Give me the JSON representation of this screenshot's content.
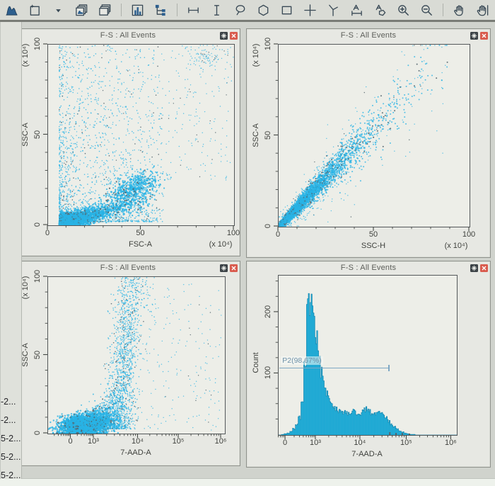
{
  "colors": {
    "dot_cyan": "#29b4e6",
    "dot_dark": "#54656e",
    "hist_fill": "#19a7d3",
    "hist_edge": "#0d7fa9",
    "gate_blue": "#7fa8c4",
    "gate_label_color": "#6d90a8",
    "close_red": "#d95b4e",
    "icon_dark": "#3a4a56"
  },
  "toolbar": {
    "buttons": [
      "histogram-icon",
      "new-plot-icon",
      "dropdown-arrow-icon",
      "duplicate-plot-icon",
      "layers-icon",
      "separator",
      "bar-chart-icon",
      "hierarchy-icon",
      "separator",
      "interval-gate-icon",
      "vertical-line-gate-icon",
      "lasso-gate-icon",
      "polygon-gate-icon",
      "rectangle-gate-icon",
      "quadrant-gate-icon",
      "angled-quadrant-gate-icon",
      "range-label-icon",
      "polygon-label-icon",
      "zoom-in-icon",
      "zoom-out-icon",
      "separator",
      "pan-hand-icon",
      "grab-hand-icon",
      "separator",
      "clipped-icon"
    ]
  },
  "sidebar": {
    "items": [
      "-2...",
      "-2...",
      "5-2...",
      "5-2...",
      "5-2..."
    ]
  },
  "chart_data": [
    {
      "type": "scatter",
      "title": "F-S : All Events",
      "xlabel": "FSC-A",
      "x_unit": "(x 10⁴)",
      "ylabel": "SSC-A",
      "y_unit": "(x 10⁴)",
      "xlim": [
        0,
        100
      ],
      "ylim": [
        0,
        100
      ],
      "x_ticks": [
        {
          "v": 0,
          "label": "0"
        },
        {
          "v": 50,
          "label": "50"
        },
        {
          "v": 100,
          "label": "100"
        }
      ],
      "y_ticks": [
        {
          "v": 0,
          "label": "0"
        },
        {
          "v": 50,
          "label": "50"
        },
        {
          "v": 100,
          "label": "100"
        }
      ],
      "x_minor": "step10",
      "y_minor": "step10",
      "clusters": [
        {
          "kind": "band",
          "n": 3000,
          "x0": 6,
          "xs": 10,
          "xmax": 58,
          "slope": 0.28,
          "icept": -1,
          "spread": 2.3,
          "r": 1.2
        },
        {
          "kind": "gauss",
          "n": 650,
          "cx": 45,
          "cy": 20,
          "sx": 7,
          "sy": 4.5,
          "rho": 0.55,
          "r": 1.1
        },
        {
          "kind": "fan",
          "n": 1500,
          "xmin": 6,
          "xmax": 62,
          "xpow": 1.9,
          "ymin": 2,
          "ymax": 100,
          "ypow": 2.8,
          "r": 0.8
        },
        {
          "kind": "uniform",
          "n": 420,
          "xmin": 8,
          "xmax": 99,
          "ymin": 25,
          "ymax": 99,
          "r": 0.7
        },
        {
          "kind": "gauss",
          "n": 90,
          "cx": 85,
          "cy": 93,
          "sx": 7,
          "sy": 4,
          "rho": 0,
          "r": 0.7
        }
      ]
    },
    {
      "type": "scatter",
      "title": "F-S : All Events",
      "xlabel": "SSC-H",
      "x_unit": "(x 10⁴)",
      "ylabel": "SSC-A",
      "y_unit": "(x 10⁴)",
      "xlim": [
        0,
        100
      ],
      "ylim": [
        0,
        100
      ],
      "x_ticks": [
        {
          "v": 0,
          "label": "0"
        },
        {
          "v": 50,
          "label": "50"
        },
        {
          "v": 100,
          "label": "100"
        }
      ],
      "y_ticks": [
        {
          "v": 0,
          "label": "0"
        },
        {
          "v": 50,
          "label": "50"
        },
        {
          "v": 100,
          "label": "100"
        }
      ],
      "x_minor": "step10",
      "y_minor": "step10",
      "clusters": [
        {
          "kind": "diag",
          "n": 4300,
          "xs": 15,
          "xmax": 93,
          "slope": 1.08,
          "s0": 0.7,
          "sk": 0.12,
          "r": 1.0
        },
        {
          "kind": "diag",
          "n": 500,
          "xs": 30,
          "xmax": 88,
          "slope": 1.05,
          "s0": 2.5,
          "sk": 0.22,
          "r": 0.7
        }
      ]
    },
    {
      "type": "scatter",
      "title": "F-S : All Events",
      "xlabel": "7-AAD-A",
      "x_unit": "",
      "ylabel": "SSC-A",
      "y_unit": "(x 10⁴)",
      "xlim": [
        0,
        1
      ],
      "ylim": [
        0,
        100
      ],
      "x_ticks": [
        {
          "pos": 0.13,
          "label": "0"
        },
        {
          "pos": 0.26,
          "label": "10³"
        },
        {
          "pos": 0.51,
          "label": "10⁴"
        },
        {
          "pos": 0.74,
          "label": "10⁵"
        },
        {
          "pos": 0.98,
          "label": "10⁶"
        }
      ],
      "y_ticks": [
        {
          "v": 0,
          "label": "0"
        },
        {
          "v": 50,
          "label": "50"
        },
        {
          "v": 100,
          "label": "100"
        }
      ],
      "x_minor": "decades",
      "y_minor": "step10",
      "clusters": [
        {
          "kind": "gauss",
          "n": 3300,
          "cx": 0.2,
          "cy": 5,
          "sx": 0.062,
          "sy": 3.2,
          "rho": 0.15,
          "r": 1.2
        },
        {
          "kind": "gauss",
          "n": 700,
          "cx": 0.3,
          "cy": 9,
          "sx": 0.045,
          "sy": 5,
          "rho": 0.25,
          "r": 1.0
        },
        {
          "kind": "column",
          "n": 1500,
          "xc": 0.385,
          "drift": 0.0009,
          "xsd": 0.045,
          "ymin": 3,
          "ymax": 100,
          "ypow": 1.5,
          "r": 0.8
        },
        {
          "kind": "uniform",
          "n": 230,
          "xmin": 0.42,
          "xmax": 0.98,
          "ymin": 2,
          "ymax": 96,
          "r": 0.7
        }
      ]
    },
    {
      "type": "histogram",
      "title": "F-S : All Events",
      "xlabel": "7-AAD-A",
      "x_unit": "",
      "ylabel": "Count",
      "y_unit": "",
      "xlim": [
        0,
        1
      ],
      "ylim": [
        0,
        260
      ],
      "x_ticks": [
        {
          "pos": 0.04,
          "label": "0"
        },
        {
          "pos": 0.21,
          "label": "10³"
        },
        {
          "pos": 0.46,
          "label": "10⁴"
        },
        {
          "pos": 0.72,
          "label": "10⁵"
        },
        {
          "pos": 0.97,
          "label": "10⁶"
        }
      ],
      "y_ticks": [
        {
          "v": 100,
          "label": "100"
        },
        {
          "v": 200,
          "label": "200"
        }
      ],
      "x_minor": "decades",
      "y_minor": "step25",
      "bins": [
        0,
        1,
        2,
        3,
        6,
        10,
        16,
        28,
        55,
        120,
        232,
        218,
        196,
        168,
        134,
        104,
        82,
        66,
        55,
        48,
        44,
        41,
        39,
        37,
        36,
        38,
        40,
        37,
        34,
        36,
        40,
        42,
        38,
        35,
        37,
        39,
        37,
        33,
        28,
        23,
        18,
        14,
        10,
        7,
        5,
        3,
        2,
        1,
        1,
        0,
        0,
        0,
        0,
        0,
        0,
        0,
        0,
        0,
        0,
        0,
        0,
        0,
        0,
        0
      ],
      "dark_specks": [
        {
          "pos": 0.62,
          "h": 4
        },
        {
          "pos": 0.655,
          "h": 3
        },
        {
          "pos": 0.69,
          "h": 3
        },
        {
          "pos": 0.73,
          "h": 2
        }
      ],
      "gate": {
        "label": "P2(98.67%)",
        "y_value": 110,
        "x0": 0.005,
        "x1": 0.62
      }
    }
  ]
}
